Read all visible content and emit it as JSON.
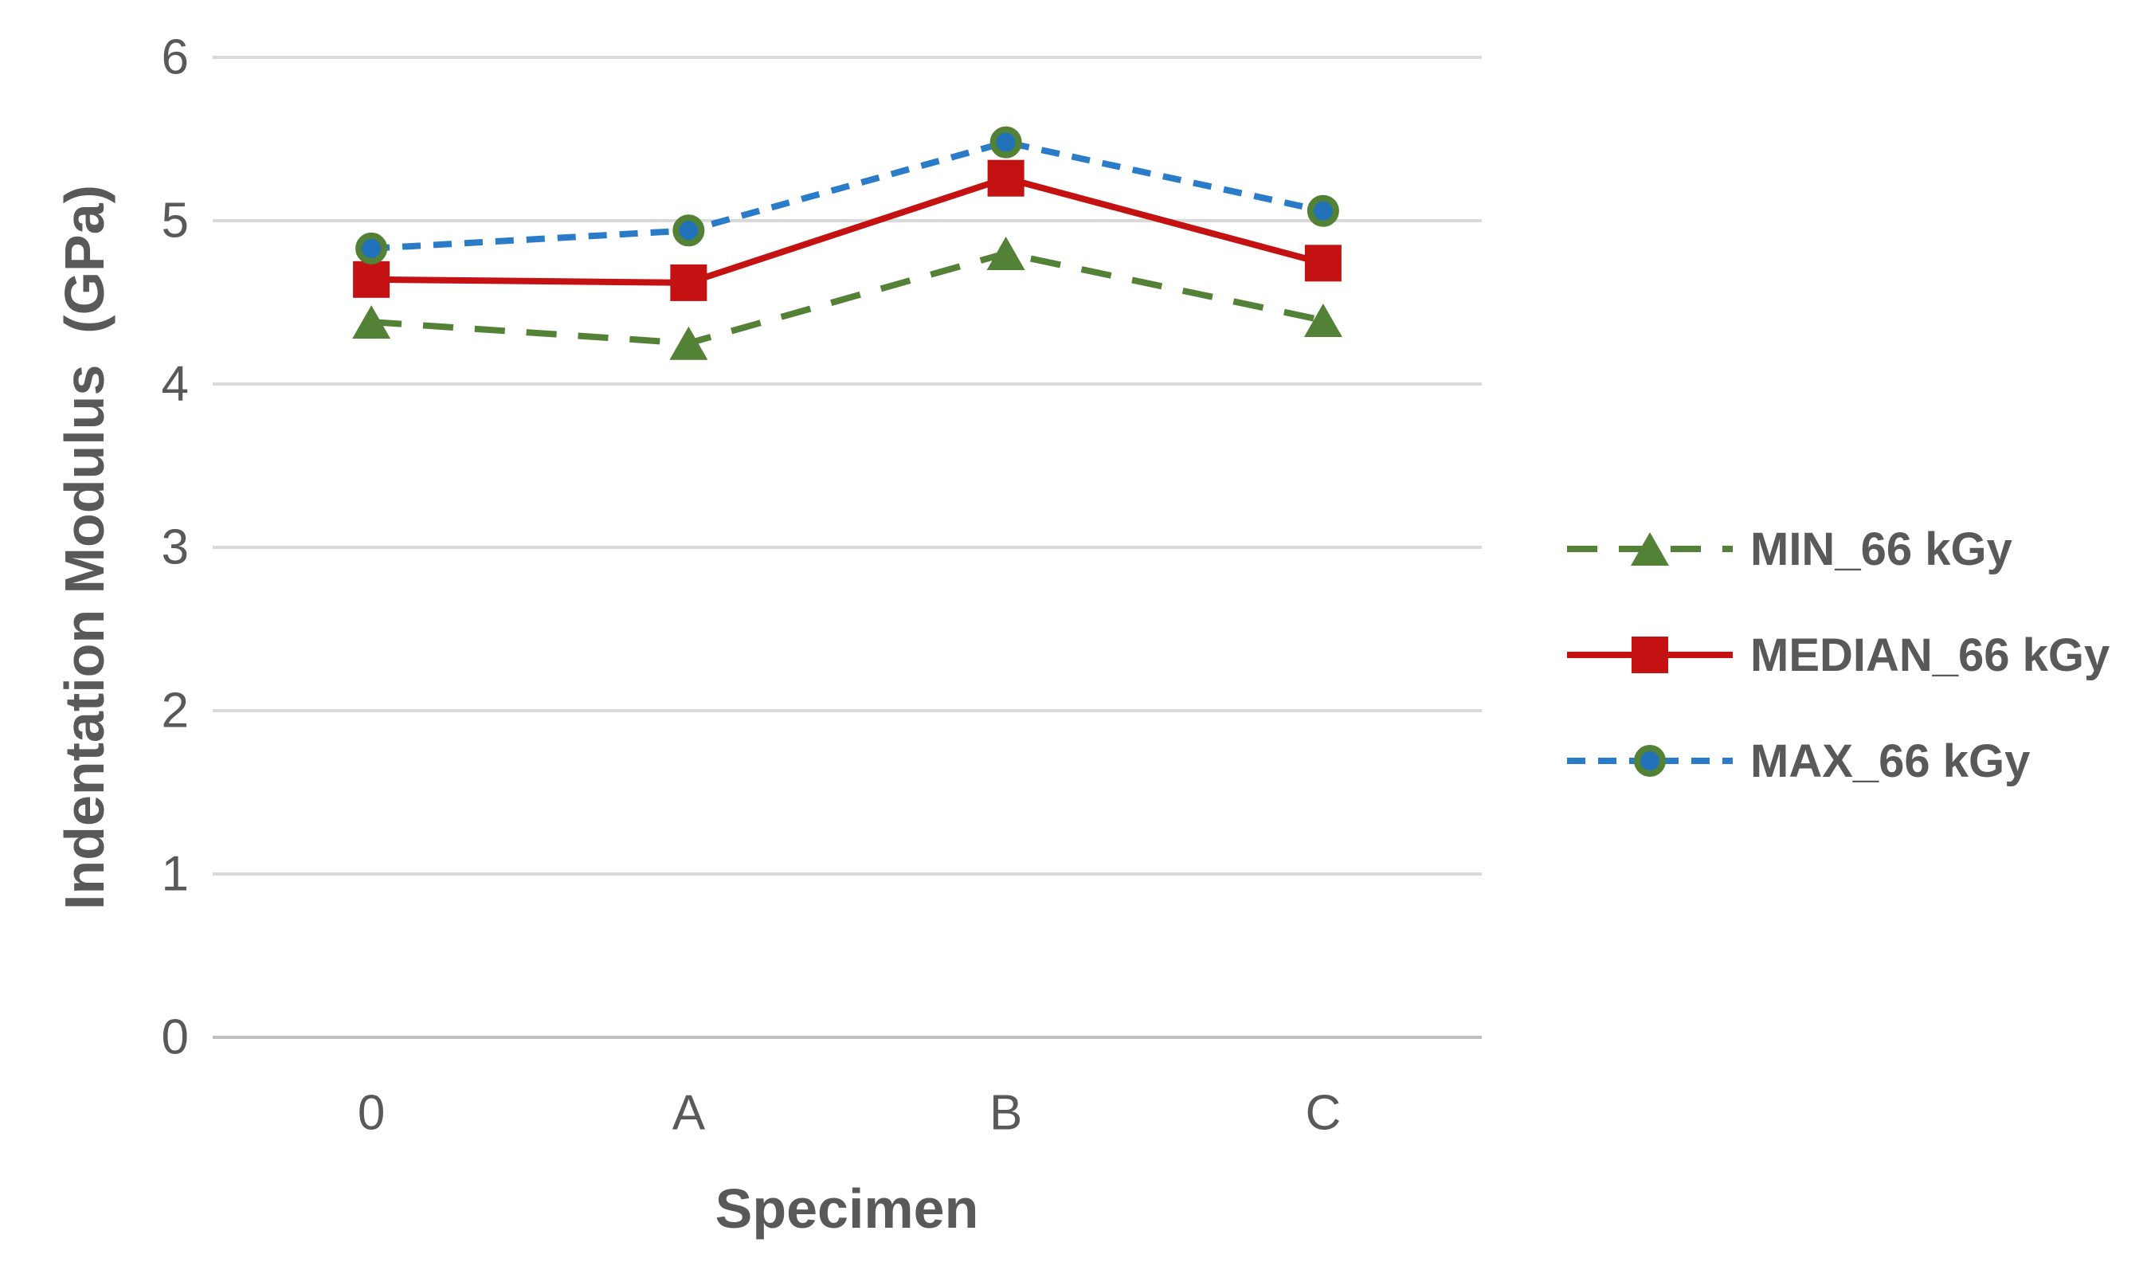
{
  "page": {
    "background": "#FFFFFF"
  },
  "chart_data": {
    "type": "line",
    "title": "",
    "xlabel": "Specimen",
    "ylabel": "Indentation Modulus  (GPa)",
    "categories": [
      "0",
      "A",
      "B",
      "C"
    ],
    "series": [
      {
        "name": "MIN_66 kGy",
        "values": [
          4.38,
          4.25,
          4.8,
          4.39
        ],
        "line_color": "#538135",
        "line_style": "dashed",
        "dash_pattern": [
          38,
          27
        ],
        "marker": "triangle",
        "marker_color": "#538135"
      },
      {
        "name": "MEDIAN_66 kGy",
        "values": [
          4.64,
          4.62,
          5.26,
          4.74
        ],
        "line_color": "#C41212",
        "line_style": "solid",
        "dash_pattern": null,
        "marker": "square",
        "marker_color": "#C41212"
      },
      {
        "name": "MAX_66 kGy",
        "values": [
          4.83,
          4.94,
          5.48,
          5.06
        ],
        "line_color": "#2A7CC8",
        "line_style": "dashed",
        "dash_pattern": [
          23,
          16
        ],
        "marker": "circle",
        "marker_color": "#2172B8",
        "marker_outline": "#538135"
      }
    ],
    "ylim": [
      0,
      6
    ],
    "yticks": [
      0,
      1,
      2,
      3,
      4,
      5,
      6
    ],
    "ytick_labels": [
      "0",
      "1",
      "2",
      "3",
      "4",
      "5",
      "6"
    ],
    "grid": true,
    "legend_position": "right",
    "colors": {
      "grid": "#D9D9D9",
      "axis_line": "#BFBFBF",
      "tick_label": "#595959",
      "axis_title": "#595959",
      "legend_text": "#595959"
    }
  }
}
